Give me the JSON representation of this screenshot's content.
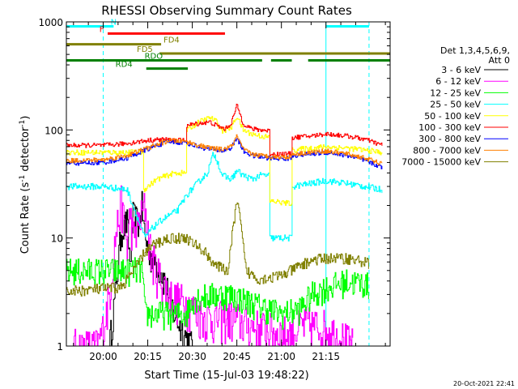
{
  "chart_data": {
    "type": "line",
    "title": "RHESSI Observing Summary Count Rates",
    "xlabel": "Start Time (15-Jul-03 19:48:22)",
    "ylabel": "Count Rate (s⁻¹ detector⁻¹)",
    "ylabel_parts": [
      "Count Rate (s",
      "-1",
      " detector",
      "-1",
      ")"
    ],
    "yscale": "log",
    "ylim": [
      1,
      1000
    ],
    "xlim": [
      -12.4,
      96.6
    ],
    "x_units": "minutes after 20:00",
    "x_ticks": [
      {
        "v": 0,
        "label": "20:00"
      },
      {
        "v": 15,
        "label": "20:15"
      },
      {
        "v": 30,
        "label": "20:30"
      },
      {
        "v": 45,
        "label": "20:45"
      },
      {
        "v": 60,
        "label": "21:00"
      },
      {
        "v": 75,
        "label": "21:15"
      }
    ],
    "y_ticks": [
      {
        "v": 1,
        "label": "1"
      },
      {
        "v": 10,
        "label": "10"
      },
      {
        "v": 100,
        "label": "100"
      },
      {
        "v": 1000,
        "label": "1000"
      }
    ],
    "legend_header": [
      "Det 1,3,4,5,6,9,",
      "Att 0"
    ],
    "legend_position": "right",
    "timestamp": "20-Oct-2021 22:41",
    "attenuator_lines": [
      {
        "x": 0,
        "style": "dashed",
        "color": "#00ffff"
      },
      {
        "x": 75,
        "style": "solid",
        "color": "#00ffff"
      },
      {
        "x": 89.5,
        "style": "dashed",
        "color": "#00ffff"
      }
    ],
    "flag_bars": [
      {
        "label": "N",
        "color": "#00ffff",
        "y": 910,
        "segments": [
          [
            -12.4,
            3.5
          ],
          [
            75,
            89.5
          ]
        ],
        "label_x": 3.5
      },
      {
        "label": "F",
        "color": "#ff0000",
        "y": 780,
        "segments": [
          [
            1.5,
            41
          ]
        ],
        "label_x": -0.5
      },
      {
        "label": "FD4",
        "color": "#808000",
        "y": 620,
        "segments": [
          [
            -12.4,
            19.5
          ]
        ],
        "label_x": 23
      },
      {
        "label": "FD5",
        "color": "#808000",
        "y": 510,
        "segments": [
          [
            19,
            96.6
          ]
        ],
        "label_x": 14
      },
      {
        "label": "RDO",
        "color": "#008000",
        "y": 440,
        "segments": [
          [
            -12.4,
            53.5
          ],
          [
            56.5,
            63.5
          ],
          [
            69,
            96.6
          ]
        ],
        "label_x": 17
      },
      {
        "label": "RD4",
        "color": "#008000",
        "y": 370,
        "segments": [
          [
            14.5,
            28.5
          ]
        ],
        "label_x": 7
      }
    ],
    "series": [
      {
        "name": "3 - 6 keV",
        "color": "#000000",
        "noise": 0.35,
        "points": [
          [
            2,
            1
          ],
          [
            4,
            3
          ],
          [
            6,
            12
          ],
          [
            8,
            14
          ],
          [
            9,
            6
          ],
          [
            10,
            16
          ],
          [
            12,
            14
          ],
          [
            13,
            20
          ],
          [
            14,
            10
          ],
          [
            16,
            7
          ],
          [
            18,
            6
          ],
          [
            20,
            4.5
          ],
          [
            22,
            3
          ],
          [
            24,
            2
          ],
          [
            26,
            1.5
          ],
          [
            28,
            1.2
          ],
          [
            30,
            1
          ]
        ]
      },
      {
        "name": "6 - 12 keV",
        "color": "#ff00ff",
        "noise": 0.45,
        "points": [
          [
            -10,
            1
          ],
          [
            -2,
            1
          ],
          [
            0,
            1.5
          ],
          [
            2,
            3
          ],
          [
            4,
            10
          ],
          [
            6,
            22
          ],
          [
            8,
            8
          ],
          [
            9,
            18
          ],
          [
            10,
            10
          ],
          [
            12,
            14
          ],
          [
            14,
            20
          ],
          [
            16,
            7
          ],
          [
            18,
            5
          ],
          [
            20,
            4
          ],
          [
            22,
            3
          ],
          [
            24,
            2.8
          ],
          [
            28,
            2.5
          ],
          [
            32,
            2
          ],
          [
            36,
            1.8
          ],
          [
            40,
            1.8
          ],
          [
            44,
            1.8
          ],
          [
            48,
            1.6
          ],
          [
            56,
            1.4
          ],
          [
            62,
            1.3
          ],
          [
            68,
            1.6
          ],
          [
            75,
            1.5
          ],
          [
            82,
            1.1
          ],
          [
            84,
            1
          ]
        ]
      },
      {
        "name": "12 - 25 keV",
        "color": "#00ff00",
        "noise": 0.3,
        "points": [
          [
            -12.4,
            5
          ],
          [
            0,
            5
          ],
          [
            8,
            5
          ],
          [
            13,
            5.2
          ],
          [
            14,
            2
          ],
          [
            20,
            2
          ],
          [
            28,
            2
          ],
          [
            30,
            2.8
          ],
          [
            38,
            3
          ],
          [
            42,
            3
          ],
          [
            46,
            2.8
          ],
          [
            50,
            2.5
          ],
          [
            56,
            2.2
          ],
          [
            60,
            2
          ],
          [
            66,
            2.2
          ],
          [
            70,
            3
          ],
          [
            75,
            3.5
          ],
          [
            82,
            4
          ],
          [
            88,
            3.8
          ],
          [
            89.5,
            3.6
          ]
        ]
      },
      {
        "name": "25 - 50 keV",
        "color": "#00ffff",
        "noise": 0.07,
        "points": [
          [
            -12.4,
            30
          ],
          [
            0,
            30
          ],
          [
            8,
            28
          ],
          [
            12,
            14
          ],
          [
            14,
            10
          ],
          [
            16,
            12
          ],
          [
            20,
            15
          ],
          [
            25,
            18
          ],
          [
            28,
            25
          ],
          [
            32,
            33
          ],
          [
            35,
            40
          ],
          [
            37,
            60
          ],
          [
            38,
            55
          ],
          [
            40,
            38
          ],
          [
            43,
            35
          ],
          [
            45,
            42
          ],
          [
            47,
            38
          ],
          [
            50,
            35
          ],
          [
            53,
            38
          ],
          [
            56,
            38
          ],
          [
            56.1,
            10
          ],
          [
            62,
            10
          ],
          [
            63.5,
            10
          ],
          [
            63.6,
            30
          ],
          [
            70,
            32
          ],
          [
            75,
            34
          ],
          [
            82,
            32
          ],
          [
            88,
            30
          ],
          [
            94,
            28
          ]
        ]
      },
      {
        "name": "50 - 100 keV",
        "color": "#ffff00",
        "noise": 0.06,
        "points": [
          [
            -12.4,
            62
          ],
          [
            0,
            62
          ],
          [
            8,
            62
          ],
          [
            13.5,
            62
          ],
          [
            13.6,
            28
          ],
          [
            18,
            35
          ],
          [
            24,
            40
          ],
          [
            28,
            40
          ],
          [
            28.1,
            100
          ],
          [
            32,
            118
          ],
          [
            36,
            130
          ],
          [
            38,
            120
          ],
          [
            40,
            98
          ],
          [
            43,
            105
          ],
          [
            45,
            135
          ],
          [
            47,
            100
          ],
          [
            50,
            92
          ],
          [
            53,
            88
          ],
          [
            56,
            85
          ],
          [
            56.1,
            22
          ],
          [
            62,
            21
          ],
          [
            63.5,
            21
          ],
          [
            63.6,
            65
          ],
          [
            70,
            68
          ],
          [
            75,
            70
          ],
          [
            82,
            68
          ],
          [
            88,
            65
          ],
          [
            94,
            62
          ]
        ]
      },
      {
        "name": "100 - 300 keV",
        "color": "#ff0000",
        "noise": 0.05,
        "points": [
          [
            -12.4,
            72
          ],
          [
            0,
            72
          ],
          [
            8,
            75
          ],
          [
            12,
            78
          ],
          [
            15,
            80
          ],
          [
            20,
            82
          ],
          [
            24,
            80
          ],
          [
            28,
            80
          ],
          [
            28.1,
            110
          ],
          [
            32,
            115
          ],
          [
            36,
            118
          ],
          [
            38,
            110
          ],
          [
            41,
            102
          ],
          [
            43,
            115
          ],
          [
            45,
            170
          ],
          [
            47,
            115
          ],
          [
            50,
            102
          ],
          [
            53,
            100
          ],
          [
            56,
            98
          ],
          [
            56.1,
            60
          ],
          [
            62,
            60
          ],
          [
            63.5,
            60
          ],
          [
            63.6,
            85
          ],
          [
            70,
            88
          ],
          [
            75,
            92
          ],
          [
            82,
            88
          ],
          [
            88,
            82
          ],
          [
            94,
            72
          ]
        ]
      },
      {
        "name": "300 - 800 keV",
        "color": "#0000ff",
        "noise": 0.05,
        "points": [
          [
            -12.4,
            49
          ],
          [
            0,
            50
          ],
          [
            8,
            55
          ],
          [
            14,
            65
          ],
          [
            18,
            72
          ],
          [
            22,
            78
          ],
          [
            28,
            76
          ],
          [
            32,
            70
          ],
          [
            36,
            66
          ],
          [
            40,
            64
          ],
          [
            43,
            68
          ],
          [
            45,
            85
          ],
          [
            47,
            64
          ],
          [
            50,
            58
          ],
          [
            53,
            56
          ],
          [
            56,
            55
          ],
          [
            60,
            54
          ],
          [
            63.5,
            55
          ],
          [
            63.6,
            58
          ],
          [
            70,
            60
          ],
          [
            75,
            62
          ],
          [
            82,
            58
          ],
          [
            88,
            52
          ],
          [
            94,
            45
          ]
        ]
      },
      {
        "name": "800 - 7000 keV",
        "color": "#ff8000",
        "noise": 0.05,
        "points": [
          [
            -12.4,
            52
          ],
          [
            0,
            53
          ],
          [
            8,
            58
          ],
          [
            14,
            67
          ],
          [
            18,
            73
          ],
          [
            22,
            80
          ],
          [
            28,
            78
          ],
          [
            32,
            72
          ],
          [
            36,
            68
          ],
          [
            40,
            66
          ],
          [
            43,
            70
          ],
          [
            45,
            88
          ],
          [
            47,
            66
          ],
          [
            50,
            60
          ],
          [
            53,
            58
          ],
          [
            56,
            57
          ],
          [
            60,
            56
          ],
          [
            63.5,
            57
          ],
          [
            63.6,
            60
          ],
          [
            70,
            62
          ],
          [
            75,
            64
          ],
          [
            82,
            60
          ],
          [
            88,
            55
          ],
          [
            94,
            48
          ]
        ]
      },
      {
        "name": "7000 - 15000 keV",
        "color": "#808000",
        "noise": 0.12,
        "points": [
          [
            -12.4,
            3.2
          ],
          [
            0,
            3.4
          ],
          [
            6,
            3.5
          ],
          [
            10,
            5
          ],
          [
            12,
            6
          ],
          [
            14,
            7.5
          ],
          [
            18,
            9
          ],
          [
            22,
            10
          ],
          [
            28,
            10
          ],
          [
            30,
            9
          ],
          [
            34,
            7.5
          ],
          [
            38,
            5.5
          ],
          [
            42,
            5
          ],
          [
            44,
            15
          ],
          [
            45,
            22
          ],
          [
            46,
            15
          ],
          [
            48,
            5
          ],
          [
            52,
            4.2
          ],
          [
            56,
            4.3
          ],
          [
            60,
            4.5
          ],
          [
            66,
            5.5
          ],
          [
            70,
            6.2
          ],
          [
            75,
            6.5
          ],
          [
            82,
            6.5
          ],
          [
            88,
            6
          ],
          [
            89.5,
            5.8
          ]
        ]
      }
    ]
  }
}
